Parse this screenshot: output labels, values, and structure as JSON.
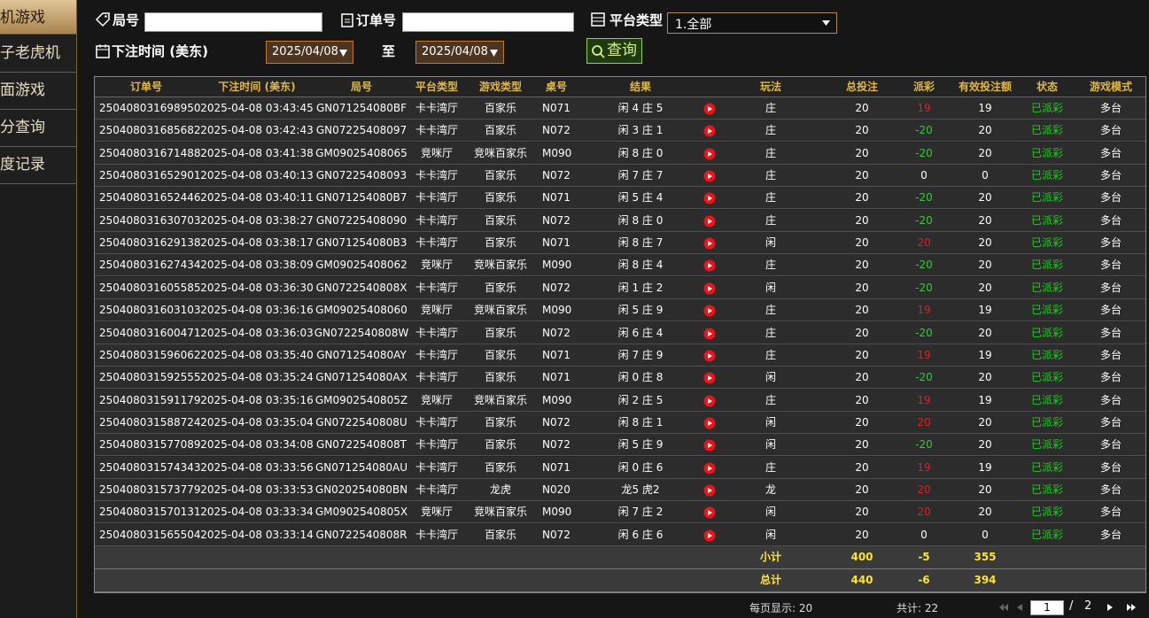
{
  "sidebar": {
    "items": [
      "机游戏",
      "子老虎机",
      "面游戏",
      "分查询",
      "度记录"
    ]
  },
  "filters": {
    "round_label": "局号",
    "order_label": "订单号",
    "platform_label": "平台类型",
    "platform_value": "1.全部",
    "time_label": "下注时间 (美东)",
    "date_from": "2025/04/08",
    "to_label": "至",
    "date_to": "2025/04/08",
    "query_button": "查询"
  },
  "table": {
    "columns": [
      "订单号",
      "下注时间 (美东)",
      "局号",
      "平台类型",
      "游戏类型",
      "桌号",
      "结果",
      "玩法",
      "总投注",
      "派彩",
      "有效投注额",
      "状态",
      "游戏模式"
    ],
    "rows": [
      [
        "250408031698950",
        "2025-04-08 03:43:45",
        "GN071254080BF",
        "卡卡湾厅",
        "百家乐",
        "N071",
        "闲 4 庄 5",
        "庄",
        20,
        19,
        19,
        "已派彩",
        "多台"
      ],
      [
        "250408031685682",
        "2025-04-08 03:42:43",
        "GN07225408097",
        "卡卡湾厅",
        "百家乐",
        "N072",
        "闲 3 庄 1",
        "庄",
        20,
        -20,
        20,
        "已派彩",
        "多台"
      ],
      [
        "250408031671488",
        "2025-04-08 03:41:38",
        "GM09025408065",
        "竞咪厅",
        "竞咪百家乐",
        "M090",
        "闲 8 庄 0",
        "庄",
        20,
        -20,
        20,
        "已派彩",
        "多台"
      ],
      [
        "250408031652901",
        "2025-04-08 03:40:13",
        "GN07225408093",
        "卡卡湾厅",
        "百家乐",
        "N072",
        "闲 7 庄 7",
        "庄",
        20,
        0,
        0,
        "已派彩",
        "多台"
      ],
      [
        "250408031652446",
        "2025-04-08 03:40:11",
        "GN071254080B7",
        "卡卡湾厅",
        "百家乐",
        "N071",
        "闲 5 庄 4",
        "庄",
        20,
        -20,
        20,
        "已派彩",
        "多台"
      ],
      [
        "250408031630703",
        "2025-04-08 03:38:27",
        "GN07225408090",
        "卡卡湾厅",
        "百家乐",
        "N072",
        "闲 8 庄 0",
        "庄",
        20,
        -20,
        20,
        "已派彩",
        "多台"
      ],
      [
        "250408031629138",
        "2025-04-08 03:38:17",
        "GN071254080B3",
        "卡卡湾厅",
        "百家乐",
        "N071",
        "闲 8 庄 7",
        "闲",
        20,
        20,
        20,
        "已派彩",
        "多台"
      ],
      [
        "250408031627434",
        "2025-04-08 03:38:09",
        "GM09025408062",
        "竞咪厅",
        "竞咪百家乐",
        "M090",
        "闲 8 庄 4",
        "庄",
        20,
        -20,
        20,
        "已派彩",
        "多台"
      ],
      [
        "250408031605585",
        "2025-04-08 03:36:30",
        "GN0722540808X",
        "卡卡湾厅",
        "百家乐",
        "N072",
        "闲 1 庄 2",
        "闲",
        20,
        -20,
        20,
        "已派彩",
        "多台"
      ],
      [
        "250408031603103",
        "2025-04-08 03:36:16",
        "GM09025408060",
        "竞咪厅",
        "竞咪百家乐",
        "M090",
        "闲 5 庄 9",
        "庄",
        20,
        19,
        19,
        "已派彩",
        "多台"
      ],
      [
        "250408031600471",
        "2025-04-08 03:36:03",
        "GN0722540808W",
        "卡卡湾厅",
        "百家乐",
        "N072",
        "闲 6 庄 4",
        "庄",
        20,
        -20,
        20,
        "已派彩",
        "多台"
      ],
      [
        "250408031596062",
        "2025-04-08 03:35:40",
        "GN071254080AY",
        "卡卡湾厅",
        "百家乐",
        "N071",
        "闲 7 庄 9",
        "庄",
        20,
        19,
        19,
        "已派彩",
        "多台"
      ],
      [
        "250408031592555",
        "2025-04-08 03:35:24",
        "GN071254080AX",
        "卡卡湾厅",
        "百家乐",
        "N071",
        "闲 0 庄 8",
        "闲",
        20,
        -20,
        20,
        "已派彩",
        "多台"
      ],
      [
        "250408031591179",
        "2025-04-08 03:35:16",
        "GM0902540805Z",
        "竞咪厅",
        "竞咪百家乐",
        "M090",
        "闲 2 庄 5",
        "庄",
        20,
        19,
        19,
        "已派彩",
        "多台"
      ],
      [
        "250408031588724",
        "2025-04-08 03:35:04",
        "GN0722540808U",
        "卡卡湾厅",
        "百家乐",
        "N072",
        "闲 8 庄 1",
        "闲",
        20,
        20,
        20,
        "已派彩",
        "多台"
      ],
      [
        "250408031577089",
        "2025-04-08 03:34:08",
        "GN0722540808T",
        "卡卡湾厅",
        "百家乐",
        "N072",
        "闲 5 庄 9",
        "闲",
        20,
        -20,
        20,
        "已派彩",
        "多台"
      ],
      [
        "250408031574343",
        "2025-04-08 03:33:56",
        "GN071254080AU",
        "卡卡湾厅",
        "百家乐",
        "N071",
        "闲 0 庄 6",
        "庄",
        20,
        19,
        19,
        "已派彩",
        "多台"
      ],
      [
        "250408031573779",
        "2025-04-08 03:33:53",
        "GN020254080BN",
        "卡卡湾厅",
        "龙虎",
        "N020",
        "龙5 虎2",
        "龙",
        20,
        20,
        20,
        "已派彩",
        "多台"
      ],
      [
        "250408031570131",
        "2025-04-08 03:33:34",
        "GM0902540805X",
        "竞咪厅",
        "竞咪百家乐",
        "M090",
        "闲 7 庄 2",
        "闲",
        20,
        20,
        20,
        "已派彩",
        "多台"
      ],
      [
        "250408031565504",
        "2025-04-08 03:33:14",
        "GN0722540808R",
        "卡卡湾厅",
        "百家乐",
        "N072",
        "闲 6 庄 6",
        "闲",
        20,
        0,
        0,
        "已派彩",
        "多台"
      ]
    ],
    "subtotal": {
      "label": "小计",
      "values": [
        400,
        -5,
        355
      ]
    },
    "total": {
      "label": "总计",
      "values": [
        440,
        -6,
        394
      ]
    }
  },
  "footer": {
    "page_size": "每页显示: 20",
    "count": "共计: 22",
    "current_page": "1",
    "separator": "/",
    "total_pages": "2"
  }
}
